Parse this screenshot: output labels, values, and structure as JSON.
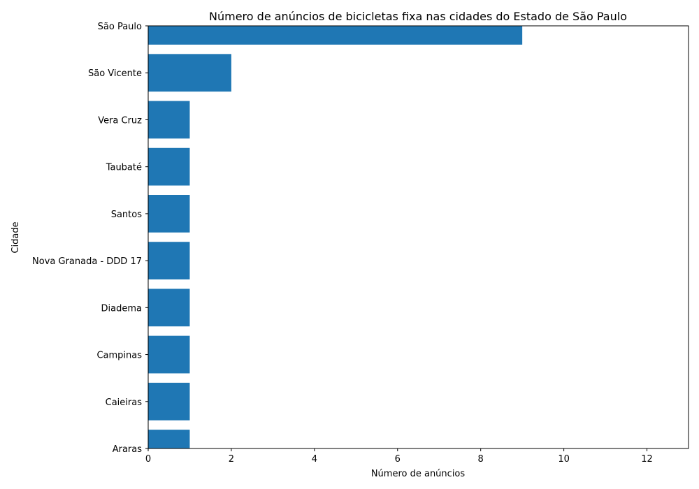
{
  "chart_data": {
    "type": "bar",
    "orientation": "horizontal",
    "title": "Número de anúncios de bicicletas fixa nas cidades do Estado de São Paulo",
    "xlabel": "Número de anúncios",
    "ylabel": "Cidade",
    "categories": [
      "São Paulo",
      "São Vicente",
      "Vera Cruz",
      "Taubaté",
      "Santos",
      "Nova Granada - DDD 17",
      "Diadema",
      "Campinas",
      "Caieiras",
      "Araras"
    ],
    "values": [
      9,
      2,
      1,
      1,
      1,
      1,
      1,
      1,
      1,
      1
    ],
    "xlim": [
      0,
      13
    ],
    "xticks": [
      0,
      2,
      4,
      6,
      8,
      10,
      12
    ],
    "grid": false,
    "bar_color": "#1f77b4"
  }
}
